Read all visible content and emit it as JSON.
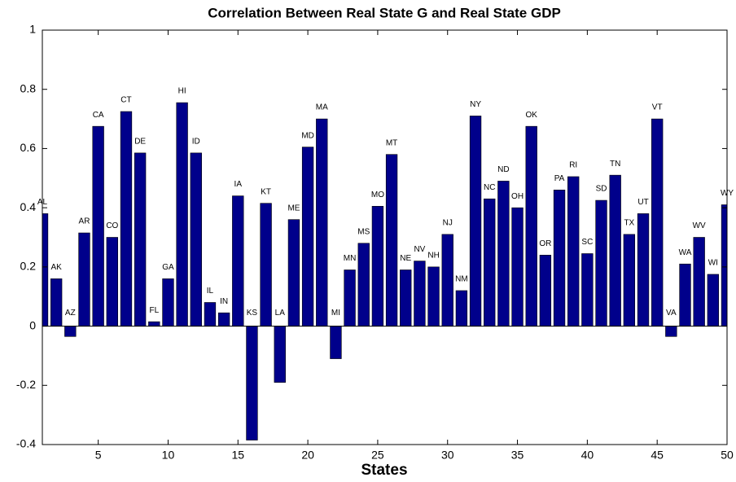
{
  "chart_data": {
    "type": "bar",
    "title": "Correlation Between  Real State G and  Real State GDP",
    "x_label": "States",
    "x": [
      1,
      2,
      3,
      4,
      5,
      6,
      7,
      8,
      9,
      10,
      11,
      12,
      13,
      14,
      15,
      16,
      17,
      18,
      19,
      20,
      21,
      22,
      23,
      24,
      25,
      26,
      27,
      28,
      29,
      30,
      31,
      32,
      33,
      34,
      35,
      36,
      37,
      38,
      39,
      40,
      41,
      42,
      43,
      44,
      45,
      46,
      47,
      48,
      49,
      50
    ],
    "values": [
      0.38,
      0.16,
      -0.035,
      0.315,
      0.675,
      0.3,
      0.725,
      0.585,
      0.015,
      0.16,
      0.755,
      0.585,
      0.08,
      0.045,
      0.44,
      -0.385,
      0.415,
      -0.19,
      0.36,
      0.605,
      0.7,
      -0.11,
      0.19,
      0.28,
      0.405,
      0.58,
      0.19,
      0.22,
      0.2,
      0.31,
      0.12,
      0.71,
      0.43,
      0.49,
      0.4,
      0.675,
      0.24,
      0.46,
      0.505,
      0.245,
      0.425,
      0.51,
      0.31,
      0.38,
      0.7,
      -0.035,
      0.21,
      0.3,
      0.175,
      0.41
    ],
    "bar_labels": [
      "AL",
      "AK",
      "AZ",
      "AR",
      "CA",
      "CO",
      "CT",
      "DE",
      "FL",
      "GA",
      "HI",
      "ID",
      "IL",
      "IN",
      "IA",
      "KS",
      "KT",
      "LA",
      "ME",
      "MD",
      "MA",
      "MI",
      "MN",
      "MS",
      "MO",
      "MT",
      "NE",
      "NV",
      "NH",
      "NJ",
      "NM",
      "NY",
      "NC",
      "ND",
      "OH",
      "OK",
      "OR",
      "PA",
      "RI",
      "SC",
      "SD",
      "TN",
      "TX",
      "UT",
      "VT",
      "VA",
      "WA",
      "WV",
      "WI",
      "WY"
    ],
    "color": "#00008b",
    "xlim": [
      1,
      50
    ],
    "xticks": [
      5,
      10,
      15,
      20,
      25,
      30,
      35,
      40,
      45,
      50
    ],
    "ylim": [
      -0.4,
      1
    ],
    "yticks": [
      -0.4,
      -0.2,
      0,
      0.2,
      0.4,
      0.6,
      0.8,
      1
    ],
    "grid": false
  }
}
